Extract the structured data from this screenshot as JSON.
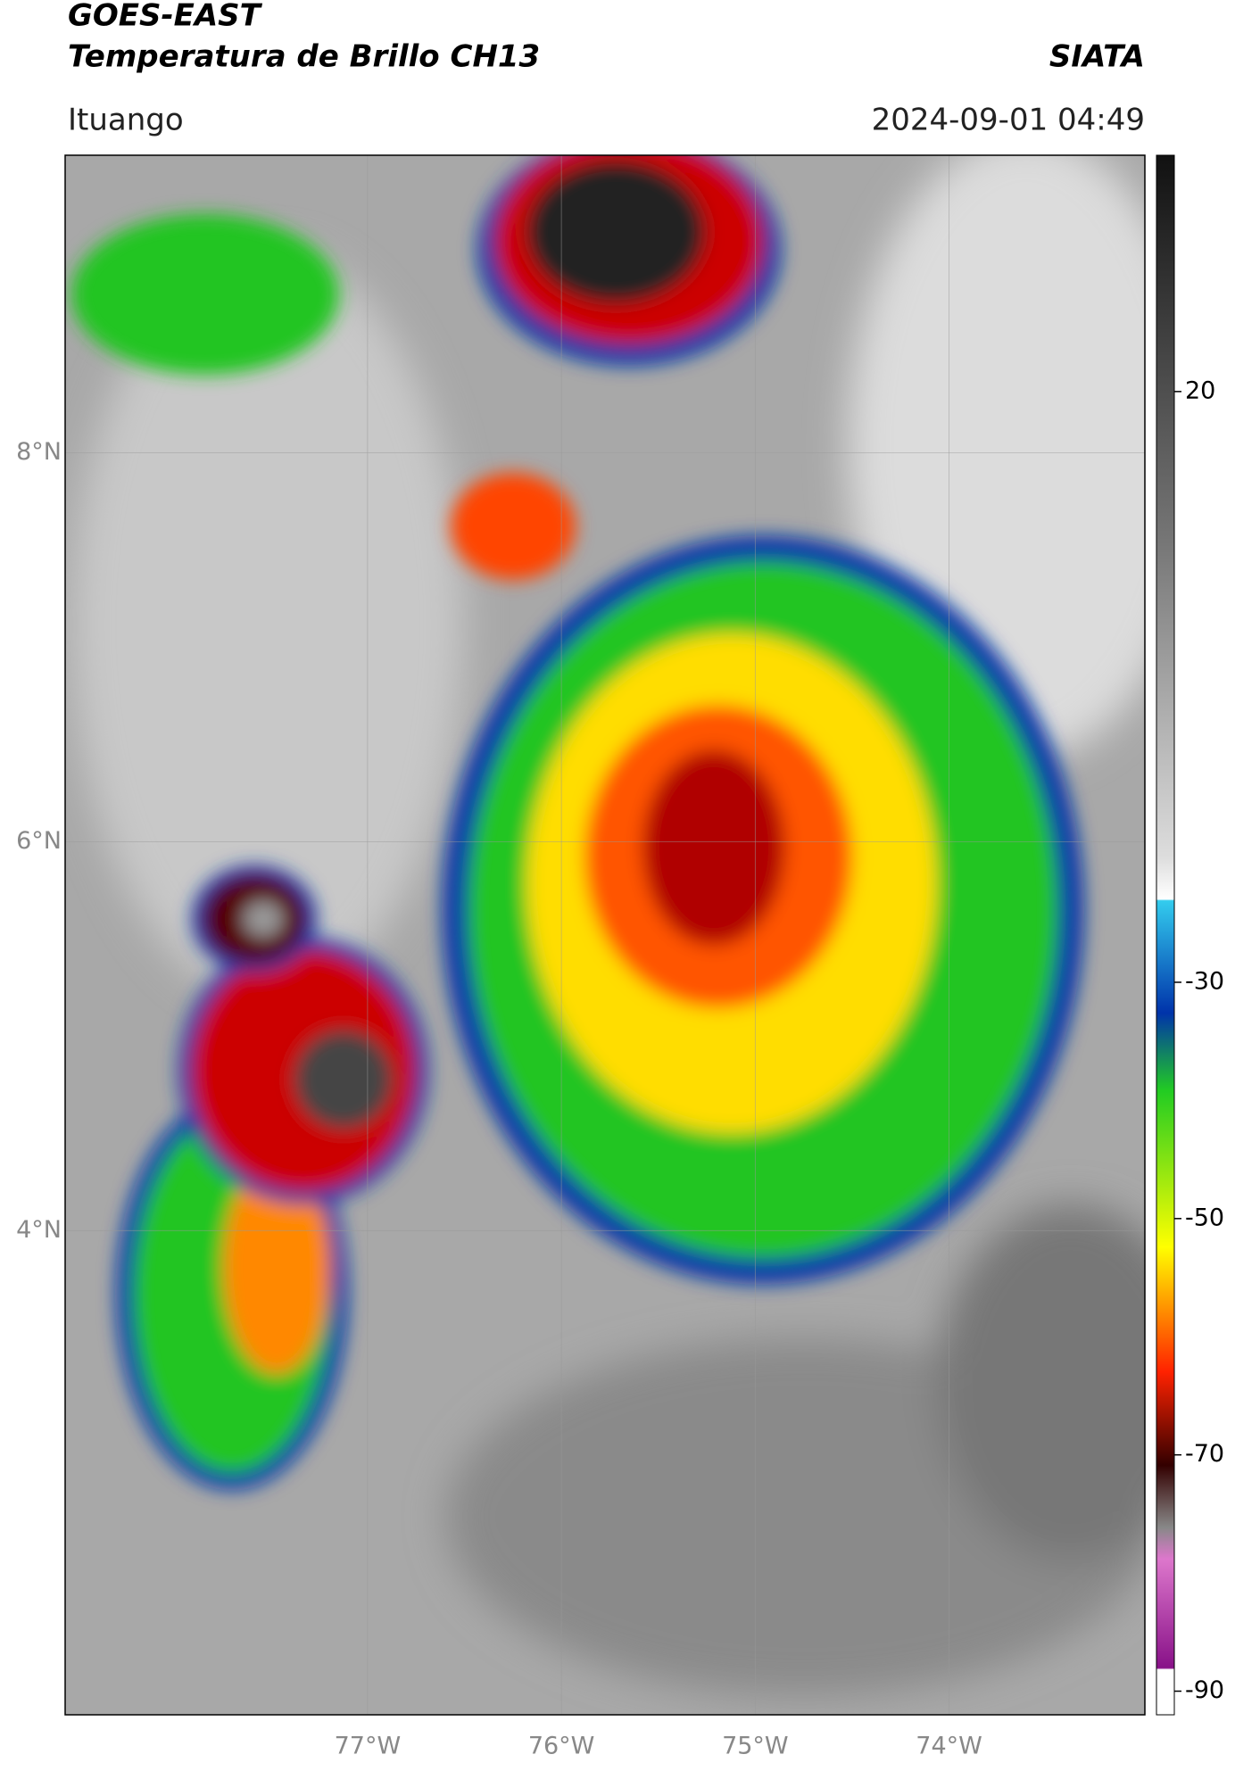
{
  "header": {
    "title": "GOES-EAST",
    "subtitle": "Temperatura de Brillo CH13",
    "brand": "SIATA",
    "location": "Ituango",
    "datetime": "2024-09-01 04:49"
  },
  "map": {
    "latlim": [
      1.51,
      9.53
    ],
    "lonlim": [
      -78.56,
      -72.99
    ],
    "latticks": [
      {
        "value": 8,
        "label": "8°N"
      },
      {
        "value": 6,
        "label": "6°N"
      },
      {
        "value": 4,
        "label": "4°N"
      }
    ],
    "lonticks": [
      {
        "value": -77,
        "label": "77°W"
      },
      {
        "value": -76,
        "label": "76°W"
      },
      {
        "value": -75,
        "label": "75°W"
      },
      {
        "value": -74,
        "label": "74°W"
      }
    ],
    "grid": true
  },
  "colorbar": {
    "lim": [
      -92,
      40
    ],
    "ticks": [
      20,
      -30,
      -50,
      -70,
      -90
    ]
  }
}
